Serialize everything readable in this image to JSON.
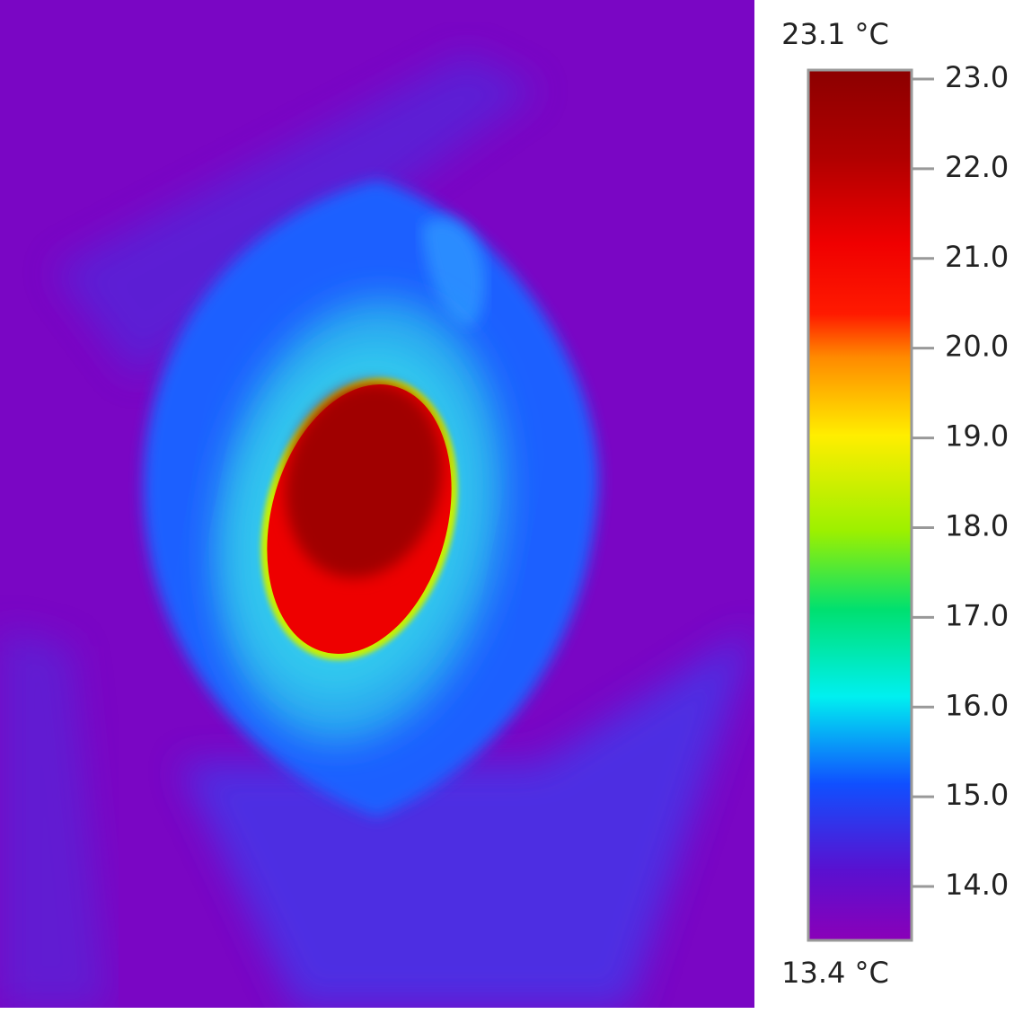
{
  "colorbar": {
    "max_label": "23.1 °C",
    "min_label": "13.4 °C",
    "range": [
      13.4,
      23.1
    ],
    "ticks": [
      {
        "value": 14,
        "label": "14.0"
      },
      {
        "value": 15,
        "label": "15.0"
      },
      {
        "value": 16,
        "label": "16.0"
      },
      {
        "value": 17,
        "label": "17.0"
      },
      {
        "value": 18,
        "label": "18.0"
      },
      {
        "value": 19,
        "label": "19.0"
      },
      {
        "value": 20,
        "label": "20.0"
      },
      {
        "value": 21,
        "label": "21.0"
      },
      {
        "value": 22,
        "label": "22.0"
      },
      {
        "value": 23,
        "label": "23.0"
      }
    ]
  }
}
